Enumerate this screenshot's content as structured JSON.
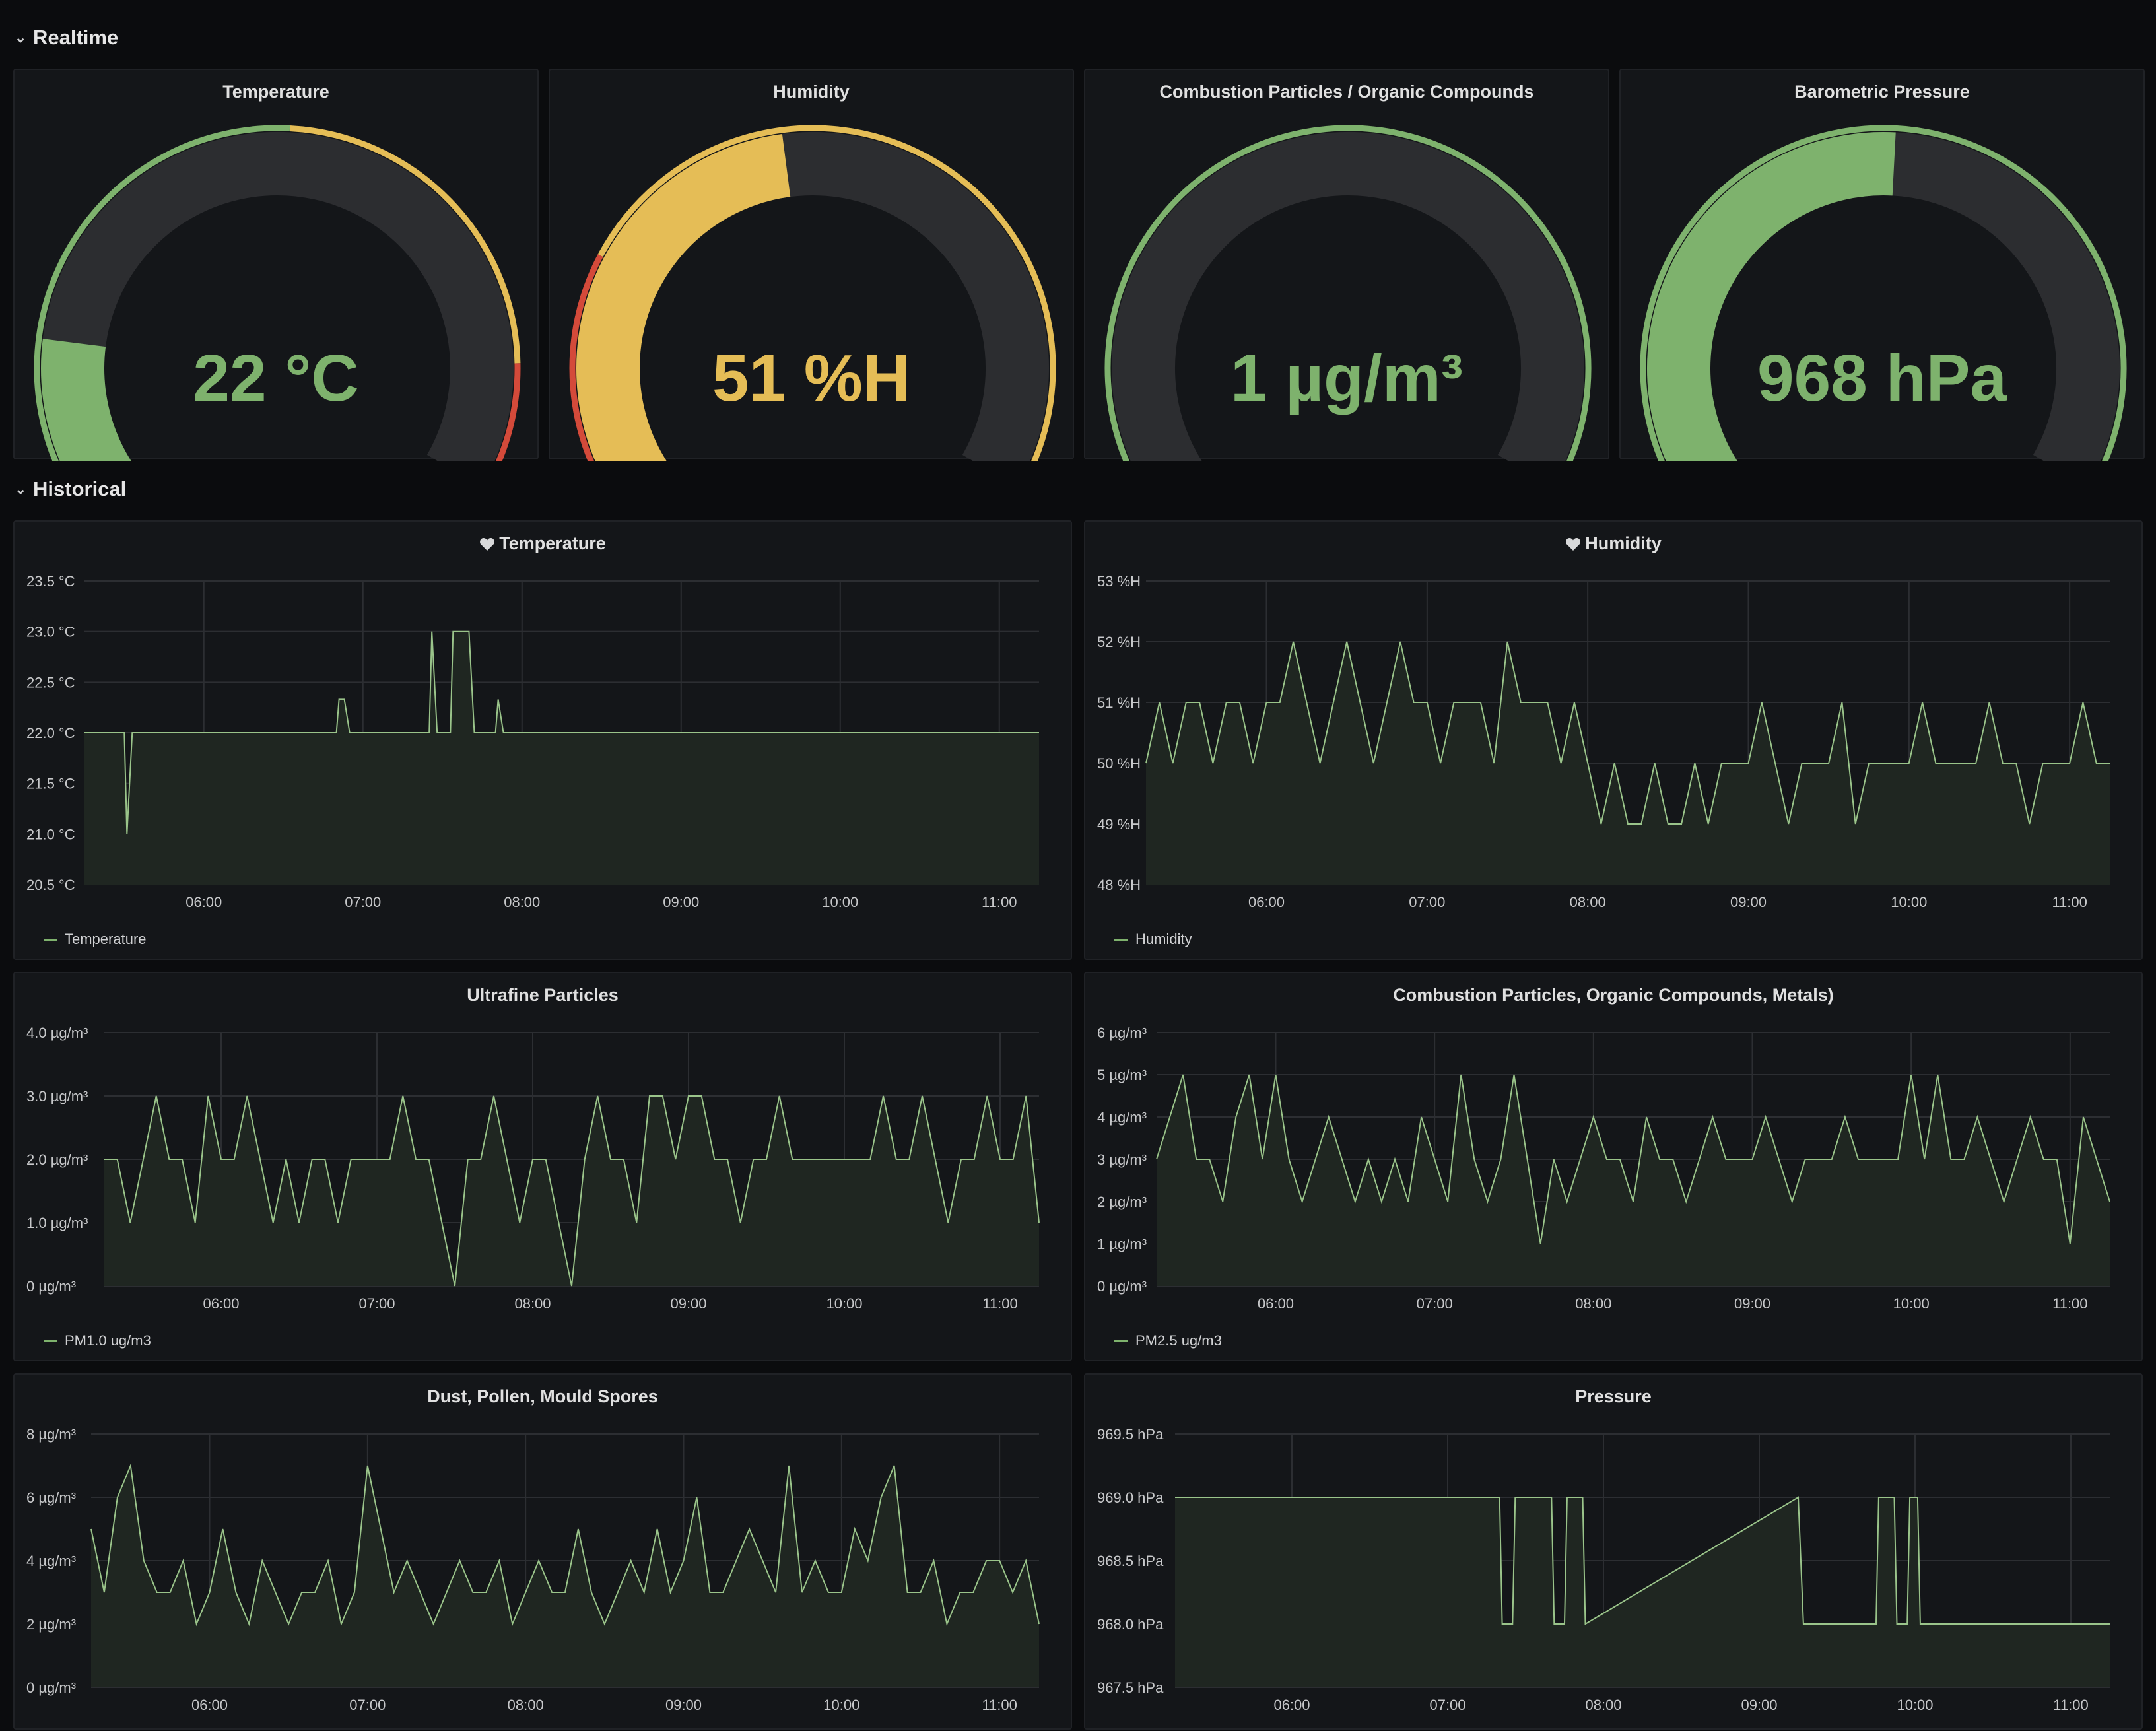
{
  "rows": {
    "realtime": "Realtime",
    "historical": "Historical"
  },
  "colors": {
    "green": "#7eb26d",
    "yellow": "#e5bd56",
    "red": "#d44a3a",
    "track": "#2c2d30",
    "line": "#9ac48a",
    "fill": "#1f2621"
  },
  "gauges": [
    {
      "title": "Temperature",
      "value_text": "22 °C",
      "fraction": 0.22,
      "color": "#7eb26d",
      "bands": [
        [
          0,
          0.55,
          "#7eb26d"
        ],
        [
          0.55,
          0.88,
          "#e5bd56"
        ],
        [
          0.88,
          1,
          "#d44a3a"
        ]
      ]
    },
    {
      "title": "Humidity",
      "value_text": "51 %H",
      "fraction": 0.51,
      "color": "#e5bd56",
      "bands": [
        [
          0,
          0.05,
          "#7eb26d"
        ],
        [
          0.05,
          0.3,
          "#d44a3a"
        ],
        [
          0.3,
          1,
          "#e5bd56"
        ]
      ]
    },
    {
      "title": "Combustion Particles / Organic Compounds",
      "value_text": "1 µg/m³",
      "fraction": 0.0,
      "color": "#7eb26d",
      "bands": [
        [
          0,
          1,
          "#7eb26d"
        ]
      ]
    },
    {
      "title": "Barometric Pressure",
      "value_text": "968 hPa",
      "fraction": 0.55,
      "color": "#7eb26d",
      "bands": [
        [
          0,
          1,
          "#7eb26d"
        ]
      ]
    }
  ],
  "icons": {
    "favorite": "heart-icon"
  },
  "graphs": [
    {
      "title": "Temperature",
      "favorite": true,
      "legend": "Temperature"
    },
    {
      "title": "Humidity",
      "favorite": true,
      "legend": "Humidity"
    },
    {
      "title": "Ultrafine Particles",
      "favorite": false,
      "legend": "PM1.0 ug/m3"
    },
    {
      "title": "Combustion Particles, Organic Compounds, Metals)",
      "favorite": false,
      "legend": "PM2.5 ug/m3"
    },
    {
      "title": "Dust, Pollen, Mould Spores",
      "favorite": false,
      "legend": ""
    },
    {
      "title": "Pressure",
      "favorite": false,
      "legend": ""
    }
  ],
  "chart_data": [
    {
      "type": "area",
      "title": "Temperature",
      "series": [
        {
          "name": "Temperature",
          "x": [
            "05:15",
            "05:30",
            "05:31",
            "05:33",
            "05:45",
            "06:00",
            "06:30",
            "06:50",
            "06:51",
            "06:53",
            "06:55",
            "07:00",
            "07:20",
            "07:25",
            "07:26",
            "07:28",
            "07:33",
            "07:34",
            "07:40",
            "07:42",
            "07:43",
            "07:44",
            "07:50",
            "07:51",
            "07:53",
            "08:00",
            "09:00",
            "10:00",
            "11:00",
            "11:15"
          ],
          "values": [
            22.0,
            22.0,
            21.0,
            22.0,
            22.0,
            22.0,
            22.0,
            22.0,
            22.33,
            22.33,
            22.0,
            22.0,
            22.0,
            22.0,
            23.0,
            22.0,
            22.0,
            23.0,
            23.0,
            22.0,
            22.0,
            22.0,
            22.0,
            22.33,
            22.0,
            22.0,
            22.0,
            22.0,
            22.0,
            22.0
          ]
        }
      ],
      "x_ticks": [
        "06:00",
        "07:00",
        "08:00",
        "09:00",
        "10:00",
        "11:00"
      ],
      "y_ticks": [
        "20.5 °C",
        "21.0 °C",
        "21.5 °C",
        "22.0 °C",
        "22.5 °C",
        "23.0 °C",
        "23.5 °C"
      ],
      "ylim": [
        20.5,
        23.5
      ],
      "xlim": [
        "05:15",
        "11:15"
      ],
      "grid": true,
      "legend": "bottom-left"
    },
    {
      "type": "area",
      "title": "Humidity",
      "series": [
        {
          "name": "Humidity",
          "x": [
            "05:15",
            "05:20",
            "05:25",
            "05:30",
            "05:35",
            "05:40",
            "05:45",
            "05:50",
            "05:55",
            "06:00",
            "06:05",
            "06:10",
            "06:15",
            "06:20",
            "06:25",
            "06:30",
            "06:35",
            "06:40",
            "06:45",
            "06:50",
            "06:55",
            "07:00",
            "07:05",
            "07:10",
            "07:15",
            "07:20",
            "07:25",
            "07:30",
            "07:35",
            "07:40",
            "07:45",
            "07:50",
            "07:55",
            "08:00",
            "08:05",
            "08:10",
            "08:15",
            "08:20",
            "08:25",
            "08:30",
            "08:35",
            "08:40",
            "08:45",
            "08:50",
            "08:55",
            "09:00",
            "09:05",
            "09:10",
            "09:15",
            "09:20",
            "09:25",
            "09:30",
            "09:35",
            "09:40",
            "09:45",
            "09:50",
            "09:55",
            "10:00",
            "10:05",
            "10:10",
            "10:15",
            "10:20",
            "10:25",
            "10:30",
            "10:35",
            "10:40",
            "10:45",
            "10:50",
            "10:55",
            "11:00",
            "11:05",
            "11:10",
            "11:15"
          ],
          "values": [
            50,
            51,
            50,
            51,
            51,
            50,
            51,
            51,
            50,
            51,
            51,
            52,
            51,
            50,
            51,
            52,
            51,
            50,
            51,
            52,
            51,
            51,
            50,
            51,
            51,
            51,
            50,
            52,
            51,
            51,
            51,
            50,
            51,
            50,
            49,
            50,
            49,
            49,
            50,
            49,
            49,
            50,
            49,
            50,
            50,
            50,
            51,
            50,
            49,
            50,
            50,
            50,
            51,
            49,
            50,
            50,
            50,
            50,
            51,
            50,
            50,
            50,
            50,
            51,
            50,
            50,
            49,
            50,
            50,
            50,
            51,
            50,
            50
          ]
        }
      ],
      "x_ticks": [
        "06:00",
        "07:00",
        "08:00",
        "09:00",
        "10:00",
        "11:00"
      ],
      "y_ticks": [
        "48 %H",
        "49 %H",
        "50 %H",
        "51 %H",
        "52 %H",
        "53 %H"
      ],
      "ylim": [
        48,
        53
      ],
      "xlim": [
        "05:15",
        "11:15"
      ],
      "grid": true,
      "legend": "bottom-left"
    },
    {
      "type": "area",
      "title": "Ultrafine Particles",
      "series": [
        {
          "name": "PM1.0 ug/m3",
          "x": [
            "05:15",
            "05:20",
            "05:25",
            "05:30",
            "05:35",
            "05:40",
            "05:45",
            "05:50",
            "05:55",
            "06:00",
            "06:05",
            "06:10",
            "06:15",
            "06:20",
            "06:25",
            "06:30",
            "06:35",
            "06:40",
            "06:45",
            "06:50",
            "06:55",
            "07:00",
            "07:05",
            "07:10",
            "07:15",
            "07:20",
            "07:25",
            "07:30",
            "07:35",
            "07:40",
            "07:45",
            "07:50",
            "07:55",
            "08:00",
            "08:05",
            "08:10",
            "08:15",
            "08:20",
            "08:25",
            "08:30",
            "08:35",
            "08:40",
            "08:45",
            "08:50",
            "08:55",
            "09:00",
            "09:05",
            "09:10",
            "09:15",
            "09:20",
            "09:25",
            "09:30",
            "09:35",
            "09:40",
            "09:45",
            "09:50",
            "09:55",
            "10:00",
            "10:05",
            "10:10",
            "10:15",
            "10:20",
            "10:25",
            "10:30",
            "10:35",
            "10:40",
            "10:45",
            "10:50",
            "10:55",
            "11:00",
            "11:05",
            "11:10",
            "11:15"
          ],
          "values": [
            2,
            2,
            1,
            2,
            3,
            2,
            2,
            1,
            3,
            2,
            2,
            3,
            2,
            1,
            2,
            1,
            2,
            2,
            1,
            2,
            2,
            2,
            2,
            3,
            2,
            2,
            1,
            0,
            2,
            2,
            3,
            2,
            1,
            2,
            2,
            1,
            0,
            2,
            3,
            2,
            2,
            1,
            3,
            3,
            2,
            3,
            3,
            2,
            2,
            1,
            2,
            2,
            3,
            2,
            2,
            2,
            2,
            2,
            2,
            2,
            3,
            2,
            2,
            3,
            2,
            1,
            2,
            2,
            3,
            2,
            2,
            3,
            1
          ]
        }
      ],
      "x_ticks": [
        "06:00",
        "07:00",
        "08:00",
        "09:00",
        "10:00",
        "11:00"
      ],
      "y_ticks": [
        "0 µg/m³",
        "1.0 µg/m³",
        "2.0 µg/m³",
        "3.0 µg/m³",
        "4.0 µg/m³"
      ],
      "ylim": [
        0,
        4
      ],
      "xlim": [
        "05:15",
        "11:15"
      ],
      "grid": true,
      "legend": "bottom-left"
    },
    {
      "type": "area",
      "title": "Combustion Particles, Organic Compounds, Metals)",
      "series": [
        {
          "name": "PM2.5 ug/m3",
          "x": [
            "05:15",
            "05:20",
            "05:25",
            "05:30",
            "05:35",
            "05:40",
            "05:45",
            "05:50",
            "05:55",
            "06:00",
            "06:05",
            "06:10",
            "06:15",
            "06:20",
            "06:25",
            "06:30",
            "06:35",
            "06:40",
            "06:45",
            "06:50",
            "06:55",
            "07:00",
            "07:05",
            "07:10",
            "07:15",
            "07:20",
            "07:25",
            "07:30",
            "07:35",
            "07:40",
            "07:45",
            "07:50",
            "07:55",
            "08:00",
            "08:05",
            "08:10",
            "08:15",
            "08:20",
            "08:25",
            "08:30",
            "08:35",
            "08:40",
            "08:45",
            "08:50",
            "08:55",
            "09:00",
            "09:05",
            "09:10",
            "09:15",
            "09:20",
            "09:25",
            "09:30",
            "09:35",
            "09:40",
            "09:45",
            "09:50",
            "09:55",
            "10:00",
            "10:05",
            "10:10",
            "10:15",
            "10:20",
            "10:25",
            "10:30",
            "10:35",
            "10:40",
            "10:45",
            "10:50",
            "10:55",
            "11:00",
            "11:05",
            "11:10",
            "11:15"
          ],
          "values": [
            3,
            4,
            5,
            3,
            3,
            2,
            4,
            5,
            3,
            5,
            3,
            2,
            3,
            4,
            3,
            2,
            3,
            2,
            3,
            2,
            4,
            3,
            2,
            5,
            3,
            2,
            3,
            5,
            3,
            1,
            3,
            2,
            3,
            4,
            3,
            3,
            2,
            4,
            3,
            3,
            2,
            3,
            4,
            3,
            3,
            3,
            4,
            3,
            2,
            3,
            3,
            3,
            4,
            3,
            3,
            3,
            3,
            5,
            3,
            5,
            3,
            3,
            4,
            3,
            2,
            3,
            4,
            3,
            3,
            1,
            4,
            3,
            2
          ]
        }
      ],
      "x_ticks": [
        "06:00",
        "07:00",
        "08:00",
        "09:00",
        "10:00",
        "11:00"
      ],
      "y_ticks": [
        "0 µg/m³",
        "1 µg/m³",
        "2 µg/m³",
        "3 µg/m³",
        "4 µg/m³",
        "5 µg/m³",
        "6 µg/m³"
      ],
      "ylim": [
        0,
        6
      ],
      "xlim": [
        "05:15",
        "11:15"
      ],
      "grid": true,
      "legend": "bottom-left"
    },
    {
      "type": "area",
      "title": "Dust, Pollen, Mould Spores",
      "series": [
        {
          "name": "",
          "x": [
            "05:15",
            "05:20",
            "05:25",
            "05:30",
            "05:35",
            "05:40",
            "05:45",
            "05:50",
            "05:55",
            "06:00",
            "06:05",
            "06:10",
            "06:15",
            "06:20",
            "06:25",
            "06:30",
            "06:35",
            "06:40",
            "06:45",
            "06:50",
            "06:55",
            "07:00",
            "07:05",
            "07:10",
            "07:15",
            "07:20",
            "07:25",
            "07:30",
            "07:35",
            "07:40",
            "07:45",
            "07:50",
            "07:55",
            "08:00",
            "08:05",
            "08:10",
            "08:15",
            "08:20",
            "08:25",
            "08:30",
            "08:35",
            "08:40",
            "08:45",
            "08:50",
            "08:55",
            "09:00",
            "09:05",
            "09:10",
            "09:15",
            "09:20",
            "09:25",
            "09:30",
            "09:35",
            "09:40",
            "09:45",
            "09:50",
            "09:55",
            "10:00",
            "10:05",
            "10:10",
            "10:15",
            "10:20",
            "10:25",
            "10:30",
            "10:35",
            "10:40",
            "10:45",
            "10:50",
            "10:55",
            "11:00",
            "11:05",
            "11:10",
            "11:15"
          ],
          "values": [
            5,
            3,
            6,
            7,
            4,
            3,
            3,
            4,
            2,
            3,
            5,
            3,
            2,
            4,
            3,
            2,
            3,
            3,
            4,
            2,
            3,
            7,
            5,
            3,
            4,
            3,
            2,
            3,
            4,
            3,
            3,
            4,
            2,
            3,
            4,
            3,
            3,
            5,
            3,
            2,
            3,
            4,
            3,
            5,
            3,
            4,
            6,
            3,
            3,
            4,
            5,
            4,
            3,
            7,
            3,
            4,
            3,
            3,
            5,
            4,
            6,
            7,
            3,
            3,
            4,
            2,
            3,
            3,
            4,
            4,
            3,
            4,
            2
          ]
        }
      ],
      "x_ticks": [
        "06:00",
        "07:00",
        "08:00",
        "09:00",
        "10:00",
        "11:00"
      ],
      "y_ticks": [
        "0 µg/m³",
        "2 µg/m³",
        "4 µg/m³",
        "6 µg/m³",
        "8 µg/m³"
      ],
      "ylim": [
        0,
        8
      ],
      "xlim": [
        "05:15",
        "11:15"
      ],
      "grid": true,
      "legend": "none"
    },
    {
      "type": "area",
      "title": "Pressure",
      "series": [
        {
          "name": "",
          "x": [
            "05:15",
            "07:20",
            "07:21",
            "07:25",
            "07:26",
            "07:40",
            "07:41",
            "07:45",
            "07:46",
            "07:52",
            "07:53",
            "09:15",
            "09:17",
            "09:45",
            "09:46",
            "09:52",
            "09:53",
            "09:57",
            "09:58",
            "10:01",
            "10:02",
            "11:15"
          ],
          "values": [
            969,
            969,
            968,
            968,
            969,
            969,
            968,
            968,
            969,
            969,
            968,
            969,
            968,
            968,
            969,
            969,
            968,
            968,
            969,
            969,
            968,
            968
          ]
        }
      ],
      "x_ticks": [
        "06:00",
        "07:00",
        "08:00",
        "09:00",
        "10:00",
        "11:00"
      ],
      "y_ticks": [
        "967.5 hPa",
        "968.0 hPa",
        "968.5 hPa",
        "969.0 hPa",
        "969.5 hPa"
      ],
      "ylim": [
        967.5,
        969.5
      ],
      "xlim": [
        "05:15",
        "11:15"
      ],
      "grid": true,
      "legend": "none"
    }
  ]
}
